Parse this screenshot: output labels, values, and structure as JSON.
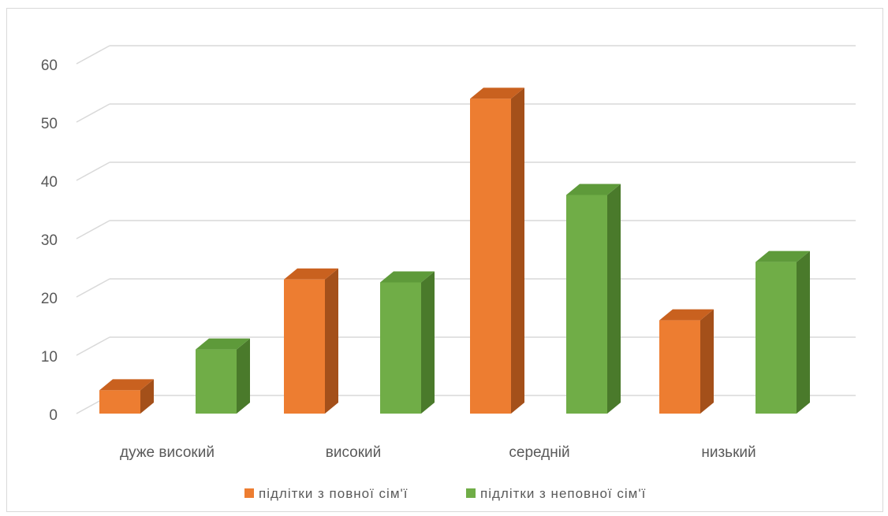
{
  "chart_data": {
    "type": "bar",
    "title": "",
    "xlabel": "",
    "ylabel": "",
    "categories": [
      "дуже високий",
      "високий",
      "середній",
      "низький"
    ],
    "series": [
      {
        "name": "підлітки з повної сім'ї",
        "values": [
          4,
          23,
          54,
          16
        ]
      },
      {
        "name": "підлітки з неповної сім'ї",
        "values": [
          11,
          22.5,
          37.5,
          26
        ]
      }
    ],
    "ylim": [
      0,
      60
    ],
    "yticks": [
      "0",
      "10",
      "20",
      "30",
      "40",
      "50",
      "60"
    ],
    "grid": true,
    "legend_position": "bottom",
    "style": "3d-clustered-column",
    "colors": {
      "series0_front": "#ED7D31",
      "series0_side": "#A4501A",
      "series0_top": "#C9611F",
      "series1_front": "#70AD47",
      "series1_side": "#4A7A2B",
      "series1_top": "#5E9A3A",
      "grid": "#d9d9d9"
    }
  }
}
